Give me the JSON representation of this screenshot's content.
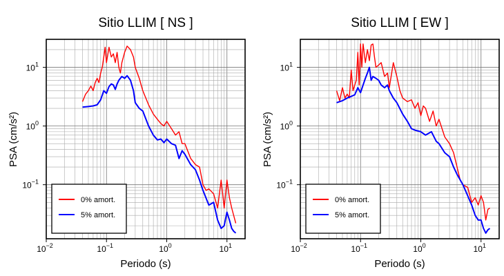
{
  "chart_data": [
    {
      "type": "line",
      "title": "Sitio LLIM [ NS ]",
      "xlabel": "Periodo (s)",
      "ylabel": "PSA (cm/s²)",
      "xscale": "log",
      "yscale": "log",
      "xlim": [
        0.01,
        20
      ],
      "ylim": [
        0.012,
        30
      ],
      "grid": true,
      "legend_position": "bottom-left",
      "xticks": [
        {
          "base": "10",
          "exp": "−2"
        },
        {
          "base": "10",
          "exp": "−1"
        },
        {
          "base": "10",
          "exp": "0"
        },
        {
          "base": "10",
          "exp": "1"
        }
      ],
      "yticks": [
        {
          "base": "10",
          "exp": "−1"
        },
        {
          "base": "10",
          "exp": "0"
        },
        {
          "base": "10",
          "exp": "1"
        }
      ],
      "series": [
        {
          "name": "0% amort.",
          "color": "#ff0000",
          "x": [
            0.04,
            0.045,
            0.05,
            0.055,
            0.06,
            0.065,
            0.07,
            0.075,
            0.08,
            0.085,
            0.09,
            0.095,
            0.1,
            0.11,
            0.12,
            0.13,
            0.14,
            0.15,
            0.16,
            0.17,
            0.18,
            0.2,
            0.22,
            0.25,
            0.28,
            0.3,
            0.35,
            0.4,
            0.45,
            0.5,
            0.6,
            0.7,
            0.8,
            0.9,
            1.0,
            1.2,
            1.4,
            1.6,
            1.8,
            2.0,
            2.5,
            3.0,
            3.5,
            4.0,
            4.5,
            5.0,
            6.0,
            7.0,
            8.0,
            9.0,
            10.0,
            11.0,
            12.0,
            14.0
          ],
          "y": [
            2.6,
            3.5,
            4.0,
            4.8,
            4.0,
            5.5,
            6.5,
            5.5,
            8.0,
            10.0,
            15.0,
            22.0,
            12.0,
            22.0,
            15.0,
            17.0,
            12.0,
            18.0,
            10.0,
            8.0,
            12.0,
            18.0,
            23.0,
            20.0,
            15.0,
            10.0,
            6.5,
            4.0,
            3.0,
            2.3,
            1.6,
            1.3,
            1.1,
            1.0,
            1.2,
            0.9,
            0.7,
            0.8,
            0.5,
            0.5,
            0.28,
            0.22,
            0.2,
            0.1,
            0.08,
            0.085,
            0.07,
            0.04,
            0.12,
            0.04,
            0.12,
            0.06,
            0.04,
            0.022
          ]
        },
        {
          "name": "5% amort.",
          "color": "#0000ff",
          "x": [
            0.04,
            0.05,
            0.06,
            0.07,
            0.08,
            0.09,
            0.1,
            0.11,
            0.12,
            0.13,
            0.14,
            0.15,
            0.16,
            0.18,
            0.2,
            0.22,
            0.25,
            0.28,
            0.3,
            0.35,
            0.4,
            0.5,
            0.6,
            0.7,
            0.8,
            0.9,
            1.0,
            1.2,
            1.4,
            1.6,
            1.8,
            2.0,
            2.5,
            3.0,
            3.5,
            4.0,
            5.0,
            6.0,
            7.0,
            8.0,
            9.0,
            10.0,
            11.0,
            12.0,
            13.0,
            14.0
          ],
          "y": [
            2.1,
            2.15,
            2.2,
            2.3,
            2.8,
            4.0,
            3.6,
            4.7,
            5.2,
            5.0,
            4.2,
            5.2,
            6.0,
            7.0,
            6.5,
            7.2,
            6.0,
            4.0,
            2.5,
            2.0,
            1.8,
            1.0,
            0.7,
            0.58,
            0.6,
            0.52,
            0.6,
            0.5,
            0.47,
            0.28,
            0.38,
            0.33,
            0.22,
            0.18,
            0.12,
            0.08,
            0.045,
            0.05,
            0.025,
            0.018,
            0.02,
            0.034,
            0.025,
            0.018,
            0.016,
            0.015
          ]
        }
      ]
    },
    {
      "type": "line",
      "title": "Sitio LLIM [ EW ]",
      "xlabel": "Periodo (s)",
      "ylabel": "PSA (cm/s²)",
      "xscale": "log",
      "yscale": "log",
      "xlim": [
        0.01,
        20
      ],
      "ylim": [
        0.012,
        30
      ],
      "grid": true,
      "legend_position": "bottom-left",
      "xticks": [
        {
          "base": "10",
          "exp": "−2"
        },
        {
          "base": "10",
          "exp": "−1"
        },
        {
          "base": "10",
          "exp": "0"
        },
        {
          "base": "10",
          "exp": "1"
        }
      ],
      "yticks": [
        {
          "base": "10",
          "exp": "−1"
        },
        {
          "base": "10",
          "exp": "0"
        },
        {
          "base": "10",
          "exp": "1"
        }
      ],
      "series": [
        {
          "name": "0% amort.",
          "color": "#ff0000",
          "x": [
            0.04,
            0.045,
            0.05,
            0.055,
            0.06,
            0.065,
            0.07,
            0.075,
            0.08,
            0.085,
            0.09,
            0.095,
            0.1,
            0.105,
            0.11,
            0.12,
            0.13,
            0.14,
            0.15,
            0.16,
            0.17,
            0.18,
            0.2,
            0.22,
            0.25,
            0.28,
            0.3,
            0.35,
            0.4,
            0.45,
            0.5,
            0.6,
            0.7,
            0.8,
            0.9,
            1.0,
            1.1,
            1.2,
            1.4,
            1.6,
            1.8,
            2.0,
            2.5,
            3.0,
            3.5,
            4.0,
            4.5,
            5.0,
            6.0,
            7.0,
            8.0,
            9.0,
            10.0,
            11.0,
            12.0,
            13.0,
            14.0
          ],
          "y": [
            4.0,
            2.7,
            4.5,
            3.0,
            3.5,
            3.0,
            9.0,
            4.0,
            5.0,
            6.0,
            18.0,
            5.0,
            25.0,
            10.0,
            25.0,
            12.0,
            20.0,
            13.0,
            24.0,
            25.0,
            15.0,
            10.0,
            11.0,
            12.0,
            7.0,
            8.0,
            4.5,
            12.0,
            7.0,
            4.0,
            3.0,
            2.6,
            2.8,
            2.0,
            2.5,
            1.5,
            2.2,
            2.0,
            1.2,
            1.8,
            1.0,
            1.3,
            0.65,
            0.5,
            0.35,
            0.2,
            0.12,
            0.1,
            0.09,
            0.05,
            0.06,
            0.045,
            0.065,
            0.05,
            0.025,
            0.038,
            0.04
          ]
        },
        {
          "name": "5% amort.",
          "color": "#0000ff",
          "x": [
            0.04,
            0.05,
            0.06,
            0.07,
            0.08,
            0.09,
            0.1,
            0.11,
            0.12,
            0.13,
            0.14,
            0.15,
            0.16,
            0.18,
            0.2,
            0.22,
            0.25,
            0.28,
            0.3,
            0.35,
            0.4,
            0.5,
            0.6,
            0.7,
            0.8,
            1.0,
            1.2,
            1.5,
            1.8,
            2.0,
            2.5,
            3.0,
            3.5,
            4.0,
            5.0,
            6.0,
            7.0,
            8.0,
            9.0,
            10.0,
            11.0,
            12.0,
            13.0,
            14.0
          ],
          "y": [
            2.5,
            2.7,
            3.0,
            3.2,
            3.4,
            4.5,
            3.7,
            5.0,
            6.5,
            8.0,
            10.0,
            6.0,
            7.0,
            6.5,
            6.0,
            5.0,
            4.5,
            5.0,
            4.0,
            3.0,
            2.5,
            1.6,
            1.2,
            0.9,
            0.85,
            0.8,
            0.7,
            0.8,
            0.55,
            0.5,
            0.35,
            0.3,
            0.2,
            0.15,
            0.1,
            0.065,
            0.045,
            0.03,
            0.025,
            0.025,
            0.018,
            0.015,
            0.017,
            0.018
          ]
        }
      ]
    }
  ]
}
